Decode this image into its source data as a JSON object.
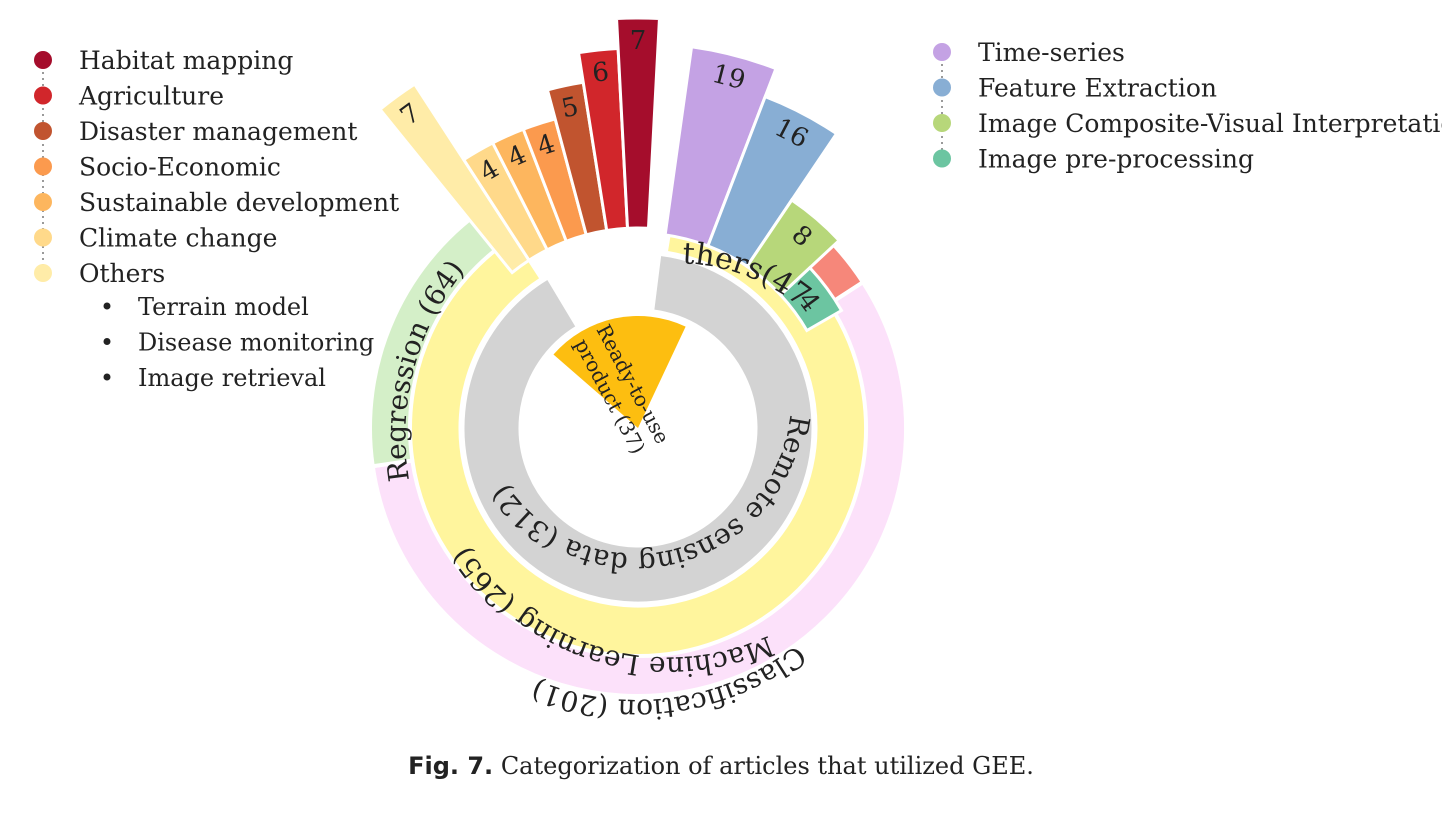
{
  "chart_data": {
    "type": "sunburst",
    "center": {
      "label_line1": "Ready-to-use",
      "label_line2": "product (37)",
      "value": 37,
      "color": "#FDBE10"
    },
    "rings": [
      {
        "label": "Remote sensing data (312)",
        "value": 312,
        "color": "#D3D3D3"
      },
      {
        "label": "Machine Learning (265)",
        "value": 265,
        "color": "#FFF59D"
      },
      {
        "label": "Classification (201)",
        "value": 201,
        "color": "#FCE1FA"
      },
      {
        "label": "Regression (64)",
        "value": 64,
        "color": "#D4EFC8"
      },
      {
        "label": "Others(47)",
        "value": 47,
        "color": "#F6877A"
      }
    ],
    "classification_applications": [
      {
        "name": "Others",
        "value": 7,
        "color": "#FFECA8"
      },
      {
        "name": "Climate change",
        "value": 4,
        "color": "#FFD98A"
      },
      {
        "name": "Sustainable development",
        "value": 4,
        "color": "#FDB65E"
      },
      {
        "name": "Socio-Economic",
        "value": 4,
        "color": "#FB9A4E"
      },
      {
        "name": "Disaster management",
        "value": 5,
        "color": "#C1542F"
      },
      {
        "name": "Agriculture",
        "value": 6,
        "color": "#D1262B"
      },
      {
        "name": "Habitat mapping",
        "value": 7,
        "color": "#A50D2C"
      }
    ],
    "others_methods": [
      {
        "name": "Time-series",
        "value": 19,
        "color": "#C4A2E4"
      },
      {
        "name": "Feature Extraction",
        "value": 16,
        "color": "#88AED4"
      },
      {
        "name": "Image Composite-Visual Interpretation",
        "value": 8,
        "color": "#B7D77A"
      },
      {
        "name": "Image pre-processing",
        "value": 4,
        "color": "#6CC5A1"
      }
    ],
    "legend_left": [
      {
        "label": "Habitat mapping",
        "color": "#A50D2C"
      },
      {
        "label": "Agriculture",
        "color": "#D1262B"
      },
      {
        "label": "Disaster management",
        "color": "#C1542F"
      },
      {
        "label": "Socio-Economic",
        "color": "#FB9A4E"
      },
      {
        "label": "Sustainable development",
        "color": "#FDB65E"
      },
      {
        "label": "Climate change",
        "color": "#FFD98A"
      },
      {
        "label": "Others",
        "color": "#FFECA8"
      }
    ],
    "others_bullets": [
      "Terrain model",
      "Disease monitoring",
      "Image retrieval"
    ],
    "legend_right": [
      {
        "label": "Time-series",
        "color": "#C4A2E4"
      },
      {
        "label": "Feature Extraction",
        "color": "#88AED4"
      },
      {
        "label": "Image Composite-Visual Interpretation",
        "color": "#B7D77A"
      },
      {
        "label": "Image pre-processing",
        "color": "#6CC5A1"
      }
    ]
  },
  "caption": {
    "label": "Fig. 7.",
    "text": "Categorization of articles that utilized GEE."
  }
}
